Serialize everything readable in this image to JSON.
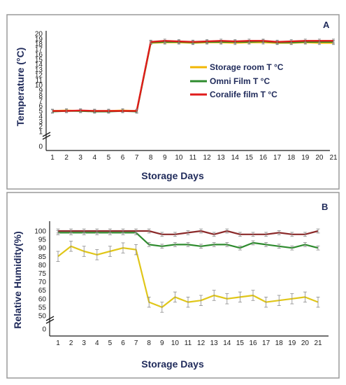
{
  "chart_data": [
    {
      "type": "line",
      "panel_label": "A",
      "xlabel": "Storage Days",
      "ylabel": "Temperature (°C)",
      "x": [
        1,
        2,
        3,
        4,
        5,
        6,
        7,
        8,
        9,
        10,
        11,
        12,
        13,
        14,
        15,
        16,
        17,
        18,
        19,
        20,
        21
      ],
      "x_ticks": [
        "1",
        "2",
        "3",
        "4",
        "5",
        "6",
        "7",
        "8",
        "9",
        "10",
        "11",
        "12",
        "13",
        "14",
        "15",
        "16",
        "17",
        "18",
        "19",
        "20",
        "21"
      ],
      "y_ticks": [
        "20",
        "19",
        "18",
        "17",
        "16",
        "15",
        "14",
        "13",
        "12",
        "11",
        "10",
        "9",
        "8",
        "7",
        "6",
        "5",
        "4",
        "3",
        "2",
        "1",
        "0"
      ],
      "ylim": [
        0,
        20
      ],
      "axis_break": true,
      "legend_position": "center-right",
      "series": [
        {
          "name": "Storage room T °C",
          "color": "#f2b705",
          "values": [
            5.0,
            5.1,
            5.0,
            5.0,
            5.0,
            5.1,
            5.0,
            18.2,
            18.3,
            18.3,
            18.2,
            18.3,
            18.3,
            18.2,
            18.3,
            18.3,
            18.2,
            18.2,
            18.3,
            18.2,
            18.2
          ]
        },
        {
          "name": "Omni Film T °C",
          "color": "#2e8b2e",
          "values": [
            4.9,
            5.0,
            5.0,
            4.9,
            4.9,
            5.0,
            4.9,
            18.3,
            18.4,
            18.4,
            18.3,
            18.4,
            18.4,
            18.4,
            18.4,
            18.5,
            18.3,
            18.3,
            18.4,
            18.4,
            18.4
          ]
        },
        {
          "name": "Coralife film T °C",
          "color": "#e01b1b",
          "values": [
            5.0,
            5.0,
            5.1,
            5.0,
            5.0,
            5.0,
            5.0,
            18.4,
            18.6,
            18.5,
            18.4,
            18.5,
            18.6,
            18.5,
            18.6,
            18.6,
            18.4,
            18.5,
            18.6,
            18.6,
            18.6
          ]
        }
      ]
    },
    {
      "type": "line",
      "panel_label": "B",
      "xlabel": "Storage Days",
      "ylabel": "Relative Humidity(%)",
      "x": [
        1,
        2,
        3,
        4,
        5,
        6,
        7,
        8,
        9,
        10,
        11,
        12,
        13,
        14,
        15,
        16,
        17,
        18,
        19,
        20,
        21
      ],
      "x_ticks": [
        "1",
        "2",
        "3",
        "4",
        "5",
        "6",
        "7",
        "8",
        "9",
        "10",
        "11",
        "12",
        "13",
        "14",
        "15",
        "16",
        "17",
        "18",
        "19",
        "20",
        "21"
      ],
      "y_ticks": [
        "100",
        "95",
        "90",
        "85",
        "80",
        "75",
        "70",
        "65",
        "60",
        "55",
        "50",
        "0"
      ],
      "ylim": [
        50,
        100
      ],
      "axis_break": true,
      "series": [
        {
          "color": "#e0c619",
          "values": [
            85,
            91,
            88,
            86,
            88,
            90,
            89,
            58,
            55,
            61,
            58,
            59,
            62,
            60,
            61,
            62,
            58,
            59,
            60,
            61,
            58
          ]
        },
        {
          "color": "#2e8b2e",
          "values": [
            99,
            99,
            99,
            99,
            99,
            99,
            99,
            92,
            91,
            92,
            92,
            91,
            92,
            92,
            90,
            93,
            92,
            91,
            90,
            92,
            90
          ]
        },
        {
          "color": "#8b2a2a",
          "values": [
            100,
            100,
            100,
            100,
            100,
            100,
            100,
            100,
            98,
            98,
            99,
            100,
            98,
            100,
            98,
            98,
            98,
            99,
            98,
            98,
            100
          ]
        }
      ]
    }
  ]
}
